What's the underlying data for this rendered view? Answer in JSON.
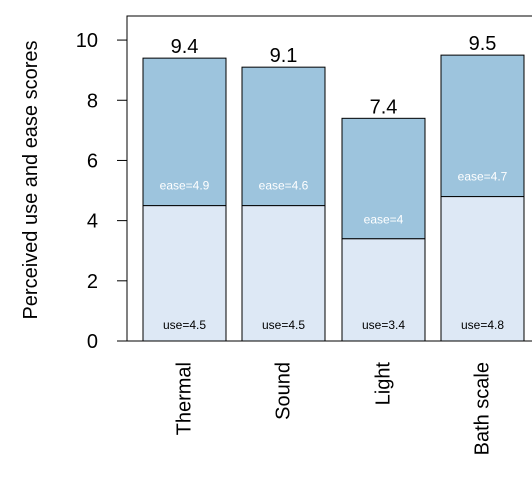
{
  "chart_data": {
    "type": "bar",
    "stacked": true,
    "categories": [
      "Thermal",
      "Sound",
      "Light",
      "Bath scale"
    ],
    "series": [
      {
        "values": [
          4.5,
          4.5,
          3.4,
          4.8
        ]
      },
      {
        "values": [
          4.9,
          4.6,
          4.0,
          4.7
        ]
      }
    ],
    "totals": [
      "9.4",
      "9.1",
      "7.4",
      "9.5"
    ],
    "use_labels": [
      "use=4.5",
      "use=4.5",
      "use=3.4",
      "use=4.8"
    ],
    "ease_labels": [
      "ease=4.9",
      "ease=4.6",
      "ease=4",
      "ease=4.7"
    ],
    "ylabel": "Perceived use and ease scores",
    "xlabel": "",
    "yticks": [
      "0",
      "2",
      "4",
      "6",
      "8",
      "10"
    ],
    "ylim": [
      0,
      10.8
    ],
    "colors": {
      "use": "#dde8f5",
      "ease": "#9dc4dd",
      "outline": "#000000"
    }
  }
}
